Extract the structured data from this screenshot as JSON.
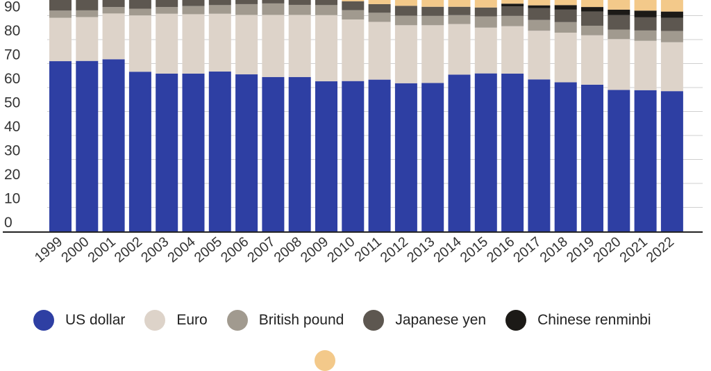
{
  "chart_data": {
    "type": "bar",
    "stacked": true,
    "categories": [
      "1999",
      "2000",
      "2001",
      "2002",
      "2003",
      "2004",
      "2005",
      "2006",
      "2007",
      "2008",
      "2009",
      "2010",
      "2011",
      "2012",
      "2013",
      "2014",
      "2015",
      "2016",
      "2017",
      "2018",
      "2019",
      "2020",
      "2021",
      "2022"
    ],
    "ylim": [
      0,
      95
    ],
    "yticks": [
      0,
      10,
      20,
      30,
      40,
      50,
      60,
      70,
      80,
      90
    ],
    "grid": true,
    "legend_position": "bottom",
    "series": [
      {
        "name": "US dollar",
        "color": "#2e3fa3",
        "values": [
          71.0,
          71.1,
          71.8,
          66.6,
          65.8,
          65.8,
          66.7,
          65.5,
          64.4,
          64.4,
          62.6,
          62.7,
          63.3,
          61.8,
          61.9,
          65.4,
          65.9,
          65.8,
          63.4,
          62.2,
          61.2,
          59.0,
          58.9,
          58.5
        ]
      },
      {
        "name": "Euro",
        "color": "#ddd3c9",
        "values": [
          18.1,
          18.3,
          19.1,
          23.5,
          25.0,
          24.8,
          24.1,
          24.8,
          25.9,
          25.9,
          27.6,
          25.7,
          24.1,
          24.2,
          24.1,
          21.1,
          19.1,
          19.8,
          20.3,
          20.7,
          20.6,
          21.2,
          20.6,
          20.4
        ]
      },
      {
        "name": "British pound",
        "color": "#a19a8f",
        "values": [
          3.0,
          2.8,
          2.7,
          2.8,
          2.8,
          3.4,
          3.6,
          4.5,
          4.8,
          4.2,
          4.2,
          3.9,
          3.8,
          4.0,
          3.9,
          3.7,
          4.7,
          4.3,
          4.5,
          4.4,
          4.0,
          4.0,
          4.3,
          4.7
        ]
      },
      {
        "name": "Japanese yen",
        "color": "#5d5750",
        "values": [
          6.3,
          6.1,
          5.0,
          4.4,
          3.9,
          3.8,
          3.6,
          3.1,
          3.2,
          3.5,
          2.9,
          3.7,
          3.6,
          4.1,
          3.8,
          3.5,
          3.7,
          4.0,
          4.9,
          5.2,
          5.9,
          6.0,
          5.5,
          5.5
        ]
      },
      {
        "name": "Chinese renminbi",
        "color": "#1c1a17",
        "values": [
          0,
          0,
          0,
          0,
          0,
          0,
          0,
          0,
          0,
          0,
          0,
          0,
          0,
          0,
          0,
          0,
          0,
          1.1,
          1.2,
          1.9,
          1.9,
          2.3,
          2.8,
          2.6
        ]
      },
      {
        "name": "",
        "color": "#f3c98a",
        "values": [
          1.6,
          1.7,
          1.4,
          2.7,
          2.5,
          2.2,
          2.0,
          2.1,
          1.7,
          2.0,
          2.7,
          4.0,
          5.2,
          5.9,
          6.3,
          6.3,
          6.6,
          5.0,
          5.7,
          5.6,
          6.4,
          7.5,
          7.9,
          8.3
        ]
      }
    ]
  },
  "legend": [
    {
      "label": "US dollar",
      "color": "#2e3fa3"
    },
    {
      "label": "Euro",
      "color": "#ddd3c9"
    },
    {
      "label": "British pound",
      "color": "#a19a8f"
    },
    {
      "label": "Japanese yen",
      "color": "#5d5750"
    },
    {
      "label": "Chinese renminbi",
      "color": "#1c1a17"
    }
  ],
  "extra_legend_color": "#f3c98a"
}
